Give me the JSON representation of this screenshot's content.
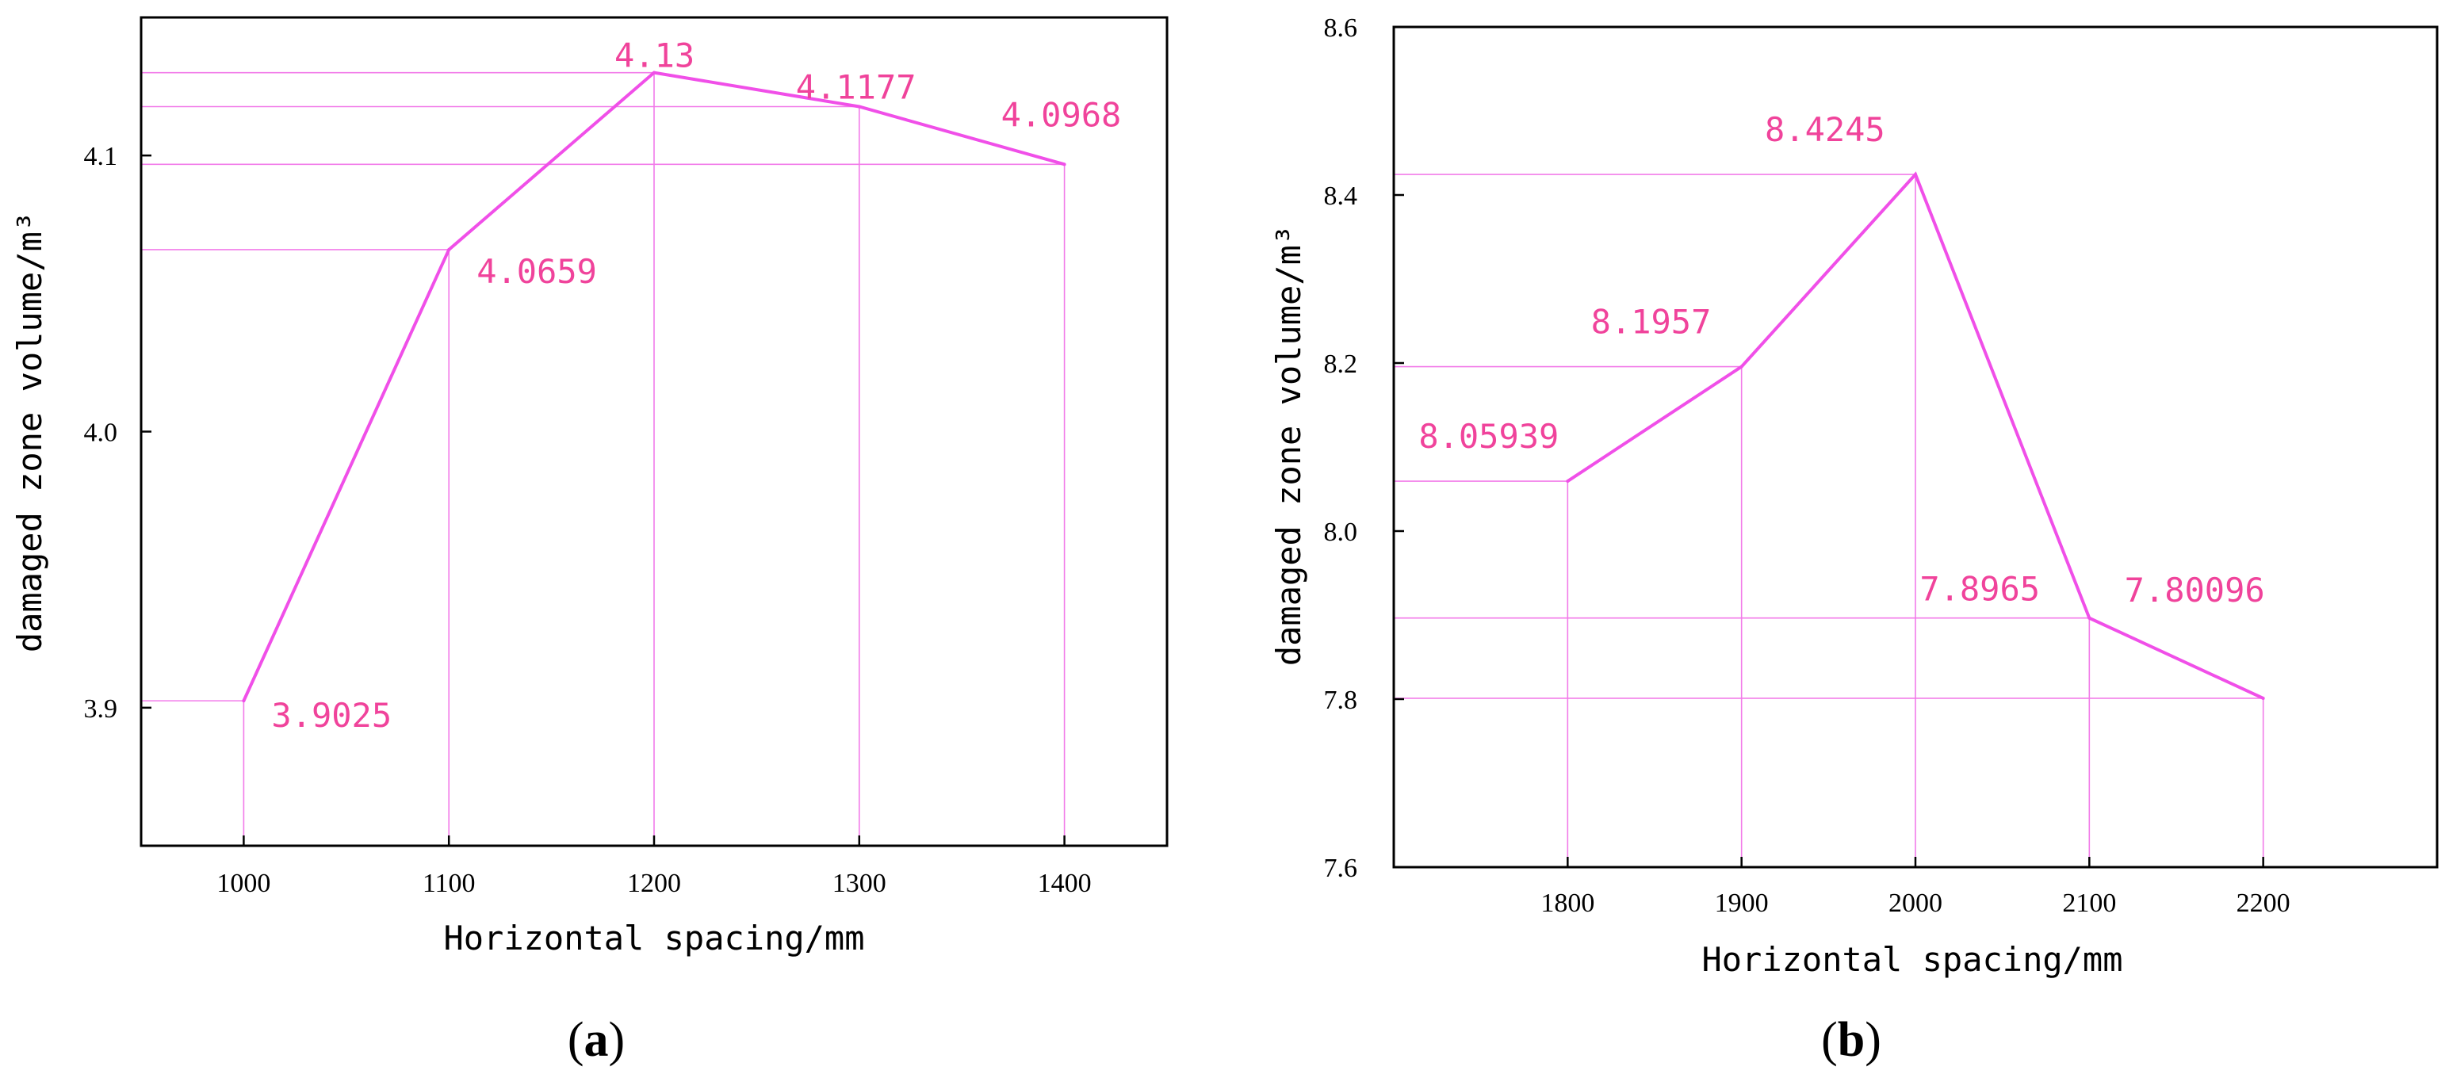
{
  "chart_data": [
    {
      "type": "line",
      "panel_label": "(a)",
      "panel_label_parts": {
        "open": "(",
        "letter": "a",
        "close": ")"
      },
      "xlabel": "Horizontal spacing/mm",
      "ylabel": "damaged zone volume/m³",
      "x": [
        1000,
        1100,
        1200,
        1300,
        1400
      ],
      "values": [
        3.9025,
        4.0659,
        4.13,
        4.1177,
        4.0968
      ],
      "data_labels": [
        "3.9025",
        "4.0659",
        "4.13",
        "4.1177",
        "4.0968"
      ],
      "x_ticks": [
        "1000",
        "1100",
        "1200",
        "1300",
        "1400"
      ],
      "y_ticks": [
        "3.9",
        "4.0",
        "4.1"
      ],
      "xlim": [
        950,
        1450
      ],
      "ylim": [
        3.85,
        4.15
      ],
      "grid": false,
      "line_color": "#f04fe8",
      "guide_color": "#f27be9",
      "label_color": "#f0439b"
    },
    {
      "type": "line",
      "panel_label": "(b)",
      "panel_label_parts": {
        "open": "(",
        "letter": "b",
        "close": ")"
      },
      "xlabel": "Horizontal spacing/mm",
      "ylabel": "damaged zone volume/m³",
      "x": [
        1800,
        1900,
        2000,
        2100,
        2200
      ],
      "values": [
        8.05939,
        8.1957,
        8.4245,
        7.8965,
        7.80096
      ],
      "data_labels": [
        "8.05939",
        "8.1957",
        "8.4245",
        "7.8965",
        "7.80096"
      ],
      "x_ticks": [
        "1800",
        "1900",
        "2000",
        "2100",
        "2200"
      ],
      "y_ticks": [
        "7.6",
        "7.8",
        "8.0",
        "8.2",
        "8.4",
        "8.6"
      ],
      "xlim": [
        1700,
        2300
      ],
      "ylim": [
        7.6,
        8.6
      ],
      "grid": false,
      "line_color": "#f04fe8",
      "guide_color": "#f27be9",
      "label_color": "#f0439b"
    }
  ]
}
